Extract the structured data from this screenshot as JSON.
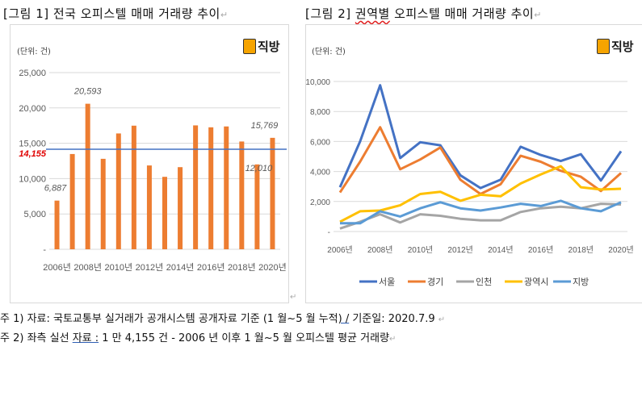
{
  "figure1": {
    "title": "[그림 1] 전국 오피스텔 매매 거래량 추이",
    "return_mark": "↵",
    "unit_label": "(단위: 건)",
    "logo_text": "직방",
    "average_label": "14,155"
  },
  "figure2": {
    "title_prefix": "[그림 2] ",
    "title_underlined": "권역별",
    "title_suffix": " 오피스텔 매매 거래량 추이",
    "return_mark": "↵",
    "unit_label": "(단위: 건)",
    "logo_text": "직방"
  },
  "notes": {
    "note1_prefix": "주 1) 자료: 국토교통부 실거래가 공개시스템 공개자료 기준 (1 월~5 월 누적",
    "note1_link": ") /",
    "note1_suffix": " 기준일: 2020.7.9 ",
    "note1_return": "↵",
    "note2_prefix": "주 2) 좌측 실선 ",
    "note2_link": "자료 :",
    "note2_suffix": " 1 만 4,155 건 -   2006 년 이후 1 월~5 월 오피스텔 평균 거래량",
    "note2_return": "↵"
  },
  "chart_data": [
    {
      "type": "bar",
      "title": "전국 오피스텔 매매 거래량 추이",
      "xlabel": "",
      "ylabel": "(단위: 건)",
      "ylim": [
        0,
        25000
      ],
      "yticks": [
        0,
        5000,
        10000,
        15000,
        20000,
        25000
      ],
      "ytick_labels": [
        "-",
        "5,000",
        "10,000",
        "15,000",
        "20,000",
        "25,000"
      ],
      "grid": true,
      "categories": [
        "2006년",
        "2007년",
        "2008년",
        "2009년",
        "2010년",
        "2011년",
        "2012년",
        "2013년",
        "2014년",
        "2015년",
        "2016년",
        "2017년",
        "2018년",
        "2019년",
        "2020년"
      ],
      "xtick_labels": [
        "2006년",
        "2008년",
        "2010년",
        "2012년",
        "2014년",
        "2016년",
        "2018년",
        "2020년"
      ],
      "values": [
        6887,
        13480,
        20593,
        12800,
        16390,
        17490,
        11860,
        10250,
        11620,
        17530,
        17260,
        17380,
        15250,
        12010,
        15769
      ],
      "data_labels": {
        "2006년": "6,887",
        "2008년": "20,593",
        "2019년": "12,010",
        "2020년": "15,769"
      },
      "bar_color": "#ed7d31",
      "reference_line": {
        "value": 14155,
        "label": "14,155",
        "color": "#4472c4",
        "label_color": "#e00000"
      }
    },
    {
      "type": "line",
      "title": "권역별 오피스텔 매매 거래량 추이",
      "xlabel": "",
      "ylabel": "(단위: 건)",
      "ylim": [
        0,
        10000
      ],
      "yticks": [
        0,
        2000,
        4000,
        6000,
        8000,
        10000
      ],
      "ytick_labels": [
        "-",
        "2,000",
        "4,000",
        "6,000",
        "8,000",
        "10,000"
      ],
      "grid": true,
      "legend": "bottom",
      "x": [
        "2006년",
        "2007년",
        "2008년",
        "2009년",
        "2010년",
        "2011년",
        "2012년",
        "2013년",
        "2014년",
        "2015년",
        "2016년",
        "2017년",
        "2018년",
        "2019년",
        "2020년"
      ],
      "xtick_labels": [
        "2006년",
        "2008년",
        "2010년",
        "2012년",
        "2014년",
        "2016년",
        "2018년",
        "2020년"
      ],
      "series": [
        {
          "name": "서울",
          "color": "#4472c4",
          "values": [
            2950,
            6000,
            9750,
            4900,
            5950,
            5750,
            3750,
            2900,
            3450,
            5650,
            5100,
            4700,
            5150,
            3400,
            5350
          ]
        },
        {
          "name": "경기",
          "color": "#ed7d31",
          "values": [
            2600,
            4650,
            6950,
            4150,
            4800,
            5600,
            3450,
            2500,
            3150,
            5050,
            4650,
            4050,
            3650,
            2700,
            3900
          ]
        },
        {
          "name": "인천",
          "color": "#a5a5a5",
          "values": [
            200,
            650,
            1150,
            600,
            1150,
            1050,
            850,
            750,
            750,
            1300,
            1550,
            1650,
            1550,
            1850,
            1800
          ]
        },
        {
          "name": "광역시",
          "color": "#ffc000",
          "values": [
            650,
            1350,
            1400,
            1750,
            2500,
            2650,
            2050,
            2450,
            2350,
            3200,
            3800,
            4350,
            2950,
            2800,
            2850
          ]
        },
        {
          "name": "지방",
          "color": "#5b9bd5",
          "values": [
            550,
            550,
            1350,
            1000,
            1550,
            1950,
            1550,
            1400,
            1600,
            1850,
            1700,
            2050,
            1550,
            1350,
            1950
          ]
        }
      ]
    }
  ]
}
